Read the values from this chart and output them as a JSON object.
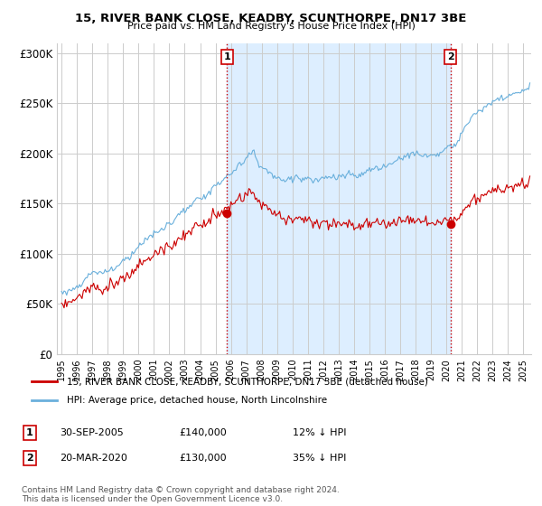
{
  "title": "15, RIVER BANK CLOSE, KEADBY, SCUNTHORPE, DN17 3BE",
  "subtitle": "Price paid vs. HM Land Registry's House Price Index (HPI)",
  "ylim": [
    0,
    310000
  ],
  "yticks": [
    0,
    50000,
    100000,
    150000,
    200000,
    250000,
    300000
  ],
  "ytick_labels": [
    "£0",
    "£50K",
    "£100K",
    "£150K",
    "£200K",
    "£250K",
    "£300K"
  ],
  "hpi_color": "#6ab0dc",
  "price_color": "#cc0000",
  "vline_color": "#cc0000",
  "shade_color": "#ddeeff",
  "sale1_year": 2005.75,
  "sale1_label": "1",
  "sale1_date": "30-SEP-2005",
  "sale1_price": 140000,
  "sale1_hpi_diff": "12% ↓ HPI",
  "sale2_year": 2020.25,
  "sale2_label": "2",
  "sale2_date": "20-MAR-2020",
  "sale2_price": 130000,
  "sale2_hpi_diff": "35% ↓ HPI",
  "legend_line1": "15, RIVER BANK CLOSE, KEADBY, SCUNTHORPE, DN17 3BE (detached house)",
  "legend_line2": "HPI: Average price, detached house, North Lincolnshire",
  "footnote": "Contains HM Land Registry data © Crown copyright and database right 2024.\nThis data is licensed under the Open Government Licence v3.0.",
  "background_color": "#ffffff",
  "grid_color": "#cccccc"
}
